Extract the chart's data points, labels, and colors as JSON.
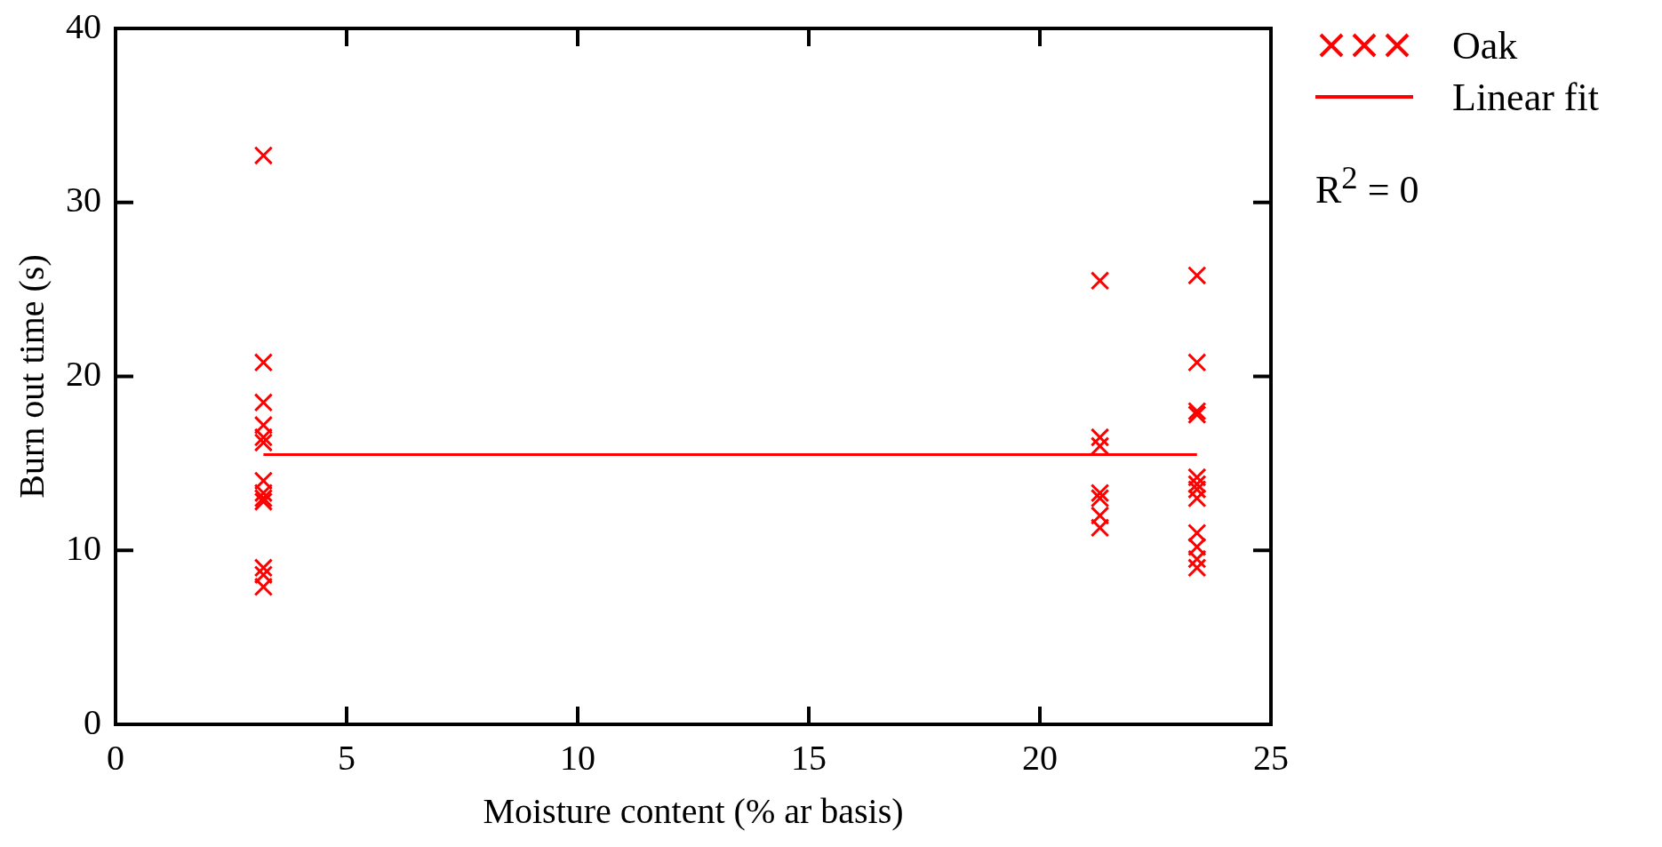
{
  "chart_data": {
    "type": "scatter",
    "xlabel": "Moisture content (% ar basis)",
    "ylabel": "Burn out time (s)",
    "xlim": [
      0,
      25
    ],
    "xticks": [
      0,
      5,
      10,
      15,
      20,
      25
    ],
    "ylim": [
      0,
      40
    ],
    "yticks": [
      0,
      10,
      20,
      30,
      40
    ],
    "legend": "right",
    "series": [
      {
        "name": "Oak",
        "color": "#ff0000",
        "marker": "cross",
        "x": [
          3.2,
          3.2,
          3.2,
          3.2,
          3.2,
          3.2,
          3.2,
          3.2,
          3.2,
          3.2,
          3.2,
          3.2,
          3.2,
          21.3,
          21.3,
          21.3,
          21.3,
          21.3,
          21.3,
          21.3,
          23.4,
          23.4,
          23.4,
          23.4,
          23.4,
          23.4,
          23.4,
          23.4,
          23.4,
          23.4,
          23.4,
          23.4
        ],
        "values": [
          32.7,
          20.8,
          18.5,
          17.2,
          16.5,
          16.2,
          14,
          13.3,
          13,
          12.8,
          9,
          8.6,
          7.9,
          25.5,
          16.5,
          16,
          13.3,
          13,
          12,
          11.3,
          25.8,
          20.8,
          18,
          17.8,
          14.2,
          13.8,
          13.5,
          13,
          11,
          10.2,
          9.5,
          9
        ]
      },
      {
        "name": "Linear fit",
        "type": "line",
        "color": "#ff0000",
        "marker": "none",
        "x": [
          3.2,
          23.4
        ],
        "values": [
          15.5,
          15.5
        ]
      }
    ],
    "annotations": [
      "R$^{2}$ = 0"
    ]
  }
}
